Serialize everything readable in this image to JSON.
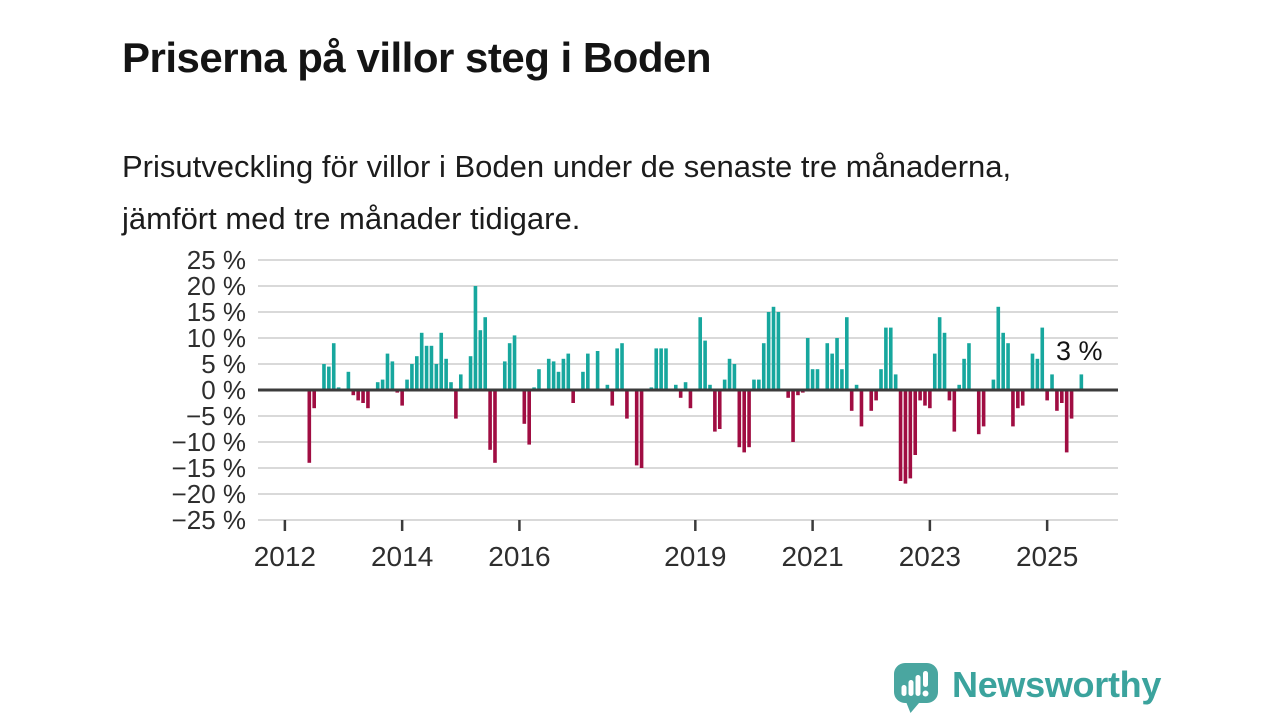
{
  "title": "Priserna på villor steg i Boden",
  "subtitle": "Prisutveckling för villor i Boden under de senaste tre månaderna, jämfört med tre månader tidigare.",
  "footer": {
    "brand": "Newsworthy",
    "logo_icon": "newsworthy-speech-bubble-chart-icon"
  },
  "colors": {
    "positive": "#17a79e",
    "negative": "#a00d42",
    "zero_line": "#3b3b3b",
    "grid": "#d9d9d9",
    "tick": "#3b3b3b",
    "axis_text": "#2e2e2e",
    "annotation_text": "#141414",
    "brand_teal": "#3ba39d"
  },
  "chart_data": {
    "type": "bar",
    "title": "Priserna på villor steg i Boden",
    "unit": "%",
    "frequency": "monthly",
    "start_month": "2012-06",
    "axis_start_month": "2011-08",
    "axis_end_month": "2026-04",
    "ylim": [
      -25,
      25
    ],
    "ytick_step": 5,
    "ytick_labels": [
      "25 %",
      "20 %",
      "15 %",
      "10 %",
      "5 %",
      "0 %",
      "−5 %",
      "−10 %",
      "−15 %",
      "−20 %",
      "−25 %"
    ],
    "xtick_years": [
      "2012",
      "2014",
      "2016",
      "2019",
      "2021",
      "2023",
      "2025"
    ],
    "grid": true,
    "legend": "none",
    "last_value_label": "3 %",
    "values": [
      -14,
      -3.5,
      null,
      5,
      4.5,
      9,
      0.5,
      null,
      3.5,
      -1,
      -2,
      -2.5,
      -3.5,
      null,
      1.5,
      2,
      7,
      5.5,
      -0.5,
      -3,
      2,
      5,
      6.5,
      11,
      8.5,
      8.5,
      5,
      11,
      6,
      1.5,
      -5.5,
      3,
      null,
      6.5,
      20,
      11.5,
      14,
      -11.5,
      -14,
      null,
      5.5,
      9,
      10.5,
      null,
      -6.5,
      -10.5,
      0.5,
      4,
      null,
      6,
      5.5,
      3.5,
      6,
      7,
      -2.5,
      null,
      3.5,
      7,
      null,
      7.5,
      null,
      1,
      -3,
      8,
      9,
      -5.5,
      null,
      -14.5,
      -15,
      null,
      0.5,
      8,
      8,
      8,
      null,
      1,
      -1.5,
      1.5,
      -3.5,
      null,
      14,
      9.5,
      1,
      -8,
      -7.5,
      2,
      6,
      5,
      -11,
      -12,
      -11,
      2,
      2,
      9,
      15,
      16,
      15,
      null,
      -1.5,
      -10,
      -1,
      -0.5,
      10,
      4,
      4,
      null,
      9,
      7,
      10,
      4,
      14,
      -4,
      1,
      -7,
      null,
      -4,
      -2,
      4,
      12,
      12,
      3,
      -17.5,
      -18,
      -17,
      -12.5,
      -2,
      -3,
      -3.5,
      7,
      14,
      11,
      -2,
      -8,
      1,
      6,
      9,
      null,
      -8.5,
      -7,
      null,
      2,
      16,
      11,
      9,
      -7,
      -3.5,
      -3,
      null,
      7,
      6,
      12,
      -2,
      3,
      -4,
      -2.5,
      -12,
      -5.5,
      null,
      3
    ]
  }
}
